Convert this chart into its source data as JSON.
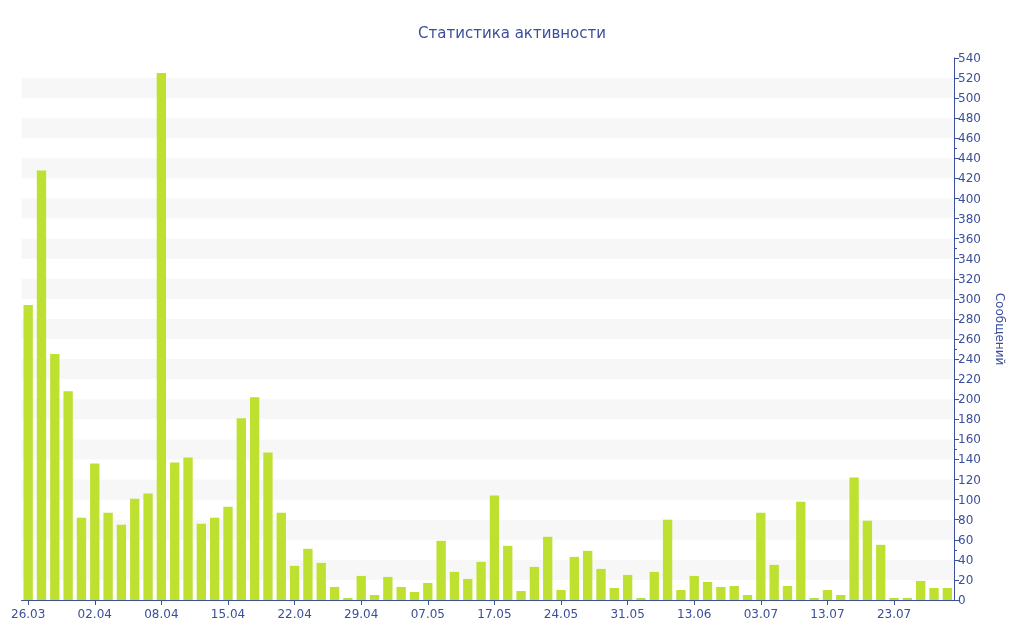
{
  "chart_data": {
    "type": "bar",
    "title": "Статистика активности",
    "y2label": "Сообщений",
    "categories": [
      "26.03",
      null,
      null,
      null,
      null,
      "02.04",
      null,
      null,
      null,
      null,
      "08.04",
      null,
      null,
      null,
      null,
      "15.04",
      null,
      null,
      null,
      null,
      "22.04",
      null,
      null,
      null,
      null,
      "29.04",
      null,
      null,
      null,
      null,
      "07.05",
      null,
      null,
      null,
      null,
      "17.05",
      null,
      null,
      null,
      null,
      "24.05",
      null,
      null,
      null,
      null,
      "31.05",
      null,
      null,
      null,
      null,
      "13.06",
      null,
      null,
      null,
      null,
      "03.07",
      null,
      null,
      null,
      null,
      "13.07",
      null,
      null,
      null,
      null,
      "23.07",
      null,
      null,
      null,
      null
    ],
    "series": [
      {
        "color": "#bde031",
        "axis": "y2",
        "values": [
          294,
          428,
          245,
          208,
          82,
          136,
          87,
          75,
          101,
          106,
          525,
          137,
          142,
          76,
          82,
          93,
          181,
          202,
          147,
          87,
          34,
          51,
          37,
          13,
          2,
          24,
          5,
          23,
          13,
          8,
          17,
          59,
          28,
          21,
          38,
          104,
          54,
          9,
          33,
          63,
          10,
          43,
          49,
          31,
          12,
          25,
          2,
          28,
          80,
          10,
          24,
          18,
          13,
          14,
          5,
          87,
          35,
          14,
          98,
          2,
          10,
          5,
          122,
          79,
          55,
          2,
          2,
          19,
          12,
          12
        ]
      }
    ],
    "y2lim": [
      0,
      540
    ],
    "y2ticks": [
      0,
      20,
      40,
      60,
      80,
      100,
      120,
      140,
      160,
      180,
      200,
      220,
      240,
      260,
      280,
      300,
      320,
      340,
      360,
      380,
      400,
      420,
      440,
      460,
      480,
      500,
      520,
      540
    ],
    "grid": false
  }
}
